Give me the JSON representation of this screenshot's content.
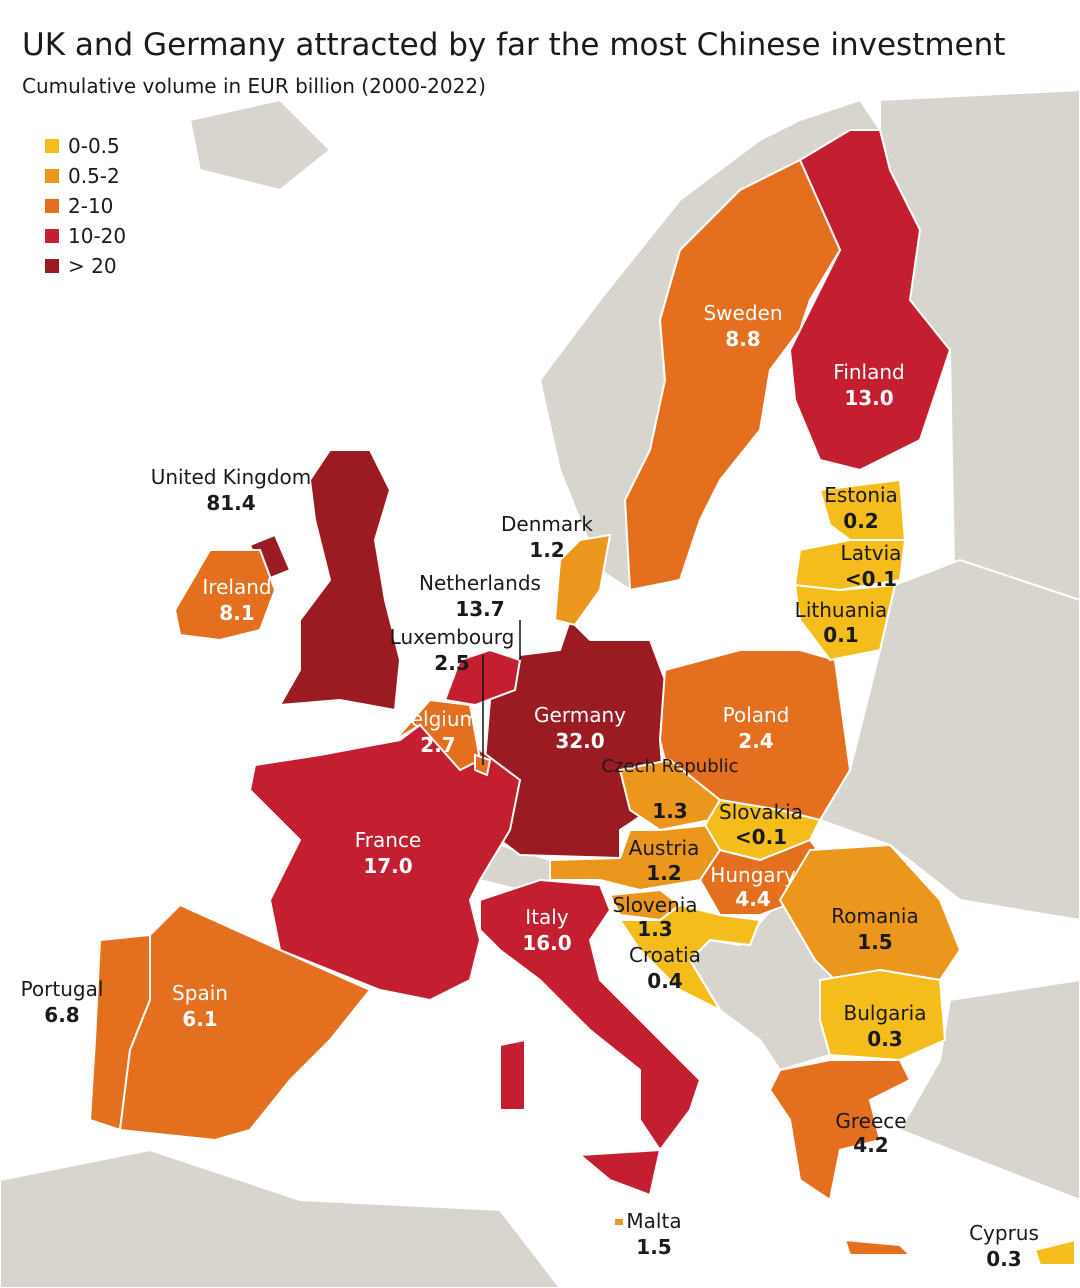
{
  "title": "UK and Germany attracted by far the most Chinese investment",
  "subtitle": "Cumulative volume in EUR billion (2000-2022)",
  "legend": [
    {
      "label": "0-0.5",
      "color": "#f4bd1c"
    },
    {
      "label": "0.5-2",
      "color": "#eb971d"
    },
    {
      "label": "2-10",
      "color": "#e4701f"
    },
    {
      "label": "10-20",
      "color": "#c41f30"
    },
    {
      "label": "> 20",
      "color": "#9a1b22"
    }
  ],
  "countries": [
    {
      "name": "United Kingdom",
      "value": "81.4",
      "class": 4
    },
    {
      "name": "Germany",
      "value": "32.0",
      "class": 4
    },
    {
      "name": "France",
      "value": "17.0",
      "class": 3
    },
    {
      "name": "Italy",
      "value": "16.0",
      "class": 3
    },
    {
      "name": "Netherlands",
      "value": "13.7",
      "class": 3
    },
    {
      "name": "Finland",
      "value": "13.0",
      "class": 3
    },
    {
      "name": "Sweden",
      "value": "8.8",
      "class": 2
    },
    {
      "name": "Ireland",
      "value": "8.1",
      "class": 2
    },
    {
      "name": "Portugal",
      "value": "6.8",
      "class": 2
    },
    {
      "name": "Spain",
      "value": "6.1",
      "class": 2
    },
    {
      "name": "Hungary",
      "value": "4.4",
      "class": 2
    },
    {
      "name": "Greece",
      "value": "4.2",
      "class": 2
    },
    {
      "name": "Belgium",
      "value": "2.7",
      "class": 2
    },
    {
      "name": "Luxembourg",
      "value": "2.5",
      "class": 2
    },
    {
      "name": "Poland",
      "value": "2.4",
      "class": 2
    },
    {
      "name": "Malta",
      "value": "1.5",
      "class": 1
    },
    {
      "name": "Romania",
      "value": "1.5",
      "class": 1
    },
    {
      "name": "Czech Republic",
      "value": "1.3",
      "class": 1
    },
    {
      "name": "Slovenia",
      "value": "1.3",
      "class": 1
    },
    {
      "name": "Denmark",
      "value": "1.2",
      "class": 1
    },
    {
      "name": "Austria",
      "value": "1.2",
      "class": 1
    },
    {
      "name": "Croatia",
      "value": "0.4",
      "class": 0
    },
    {
      "name": "Bulgaria",
      "value": "0.3",
      "class": 0
    },
    {
      "name": "Cyprus",
      "value": "0.3",
      "class": 0
    },
    {
      "name": "Estonia",
      "value": "0.2",
      "class": 0
    },
    {
      "name": "Lithuania",
      "value": "0.1",
      "class": 0
    },
    {
      "name": "Latvia",
      "value": "<0.1",
      "class": 0
    },
    {
      "name": "Slovakia",
      "value": "<0.1",
      "class": 0
    }
  ]
}
